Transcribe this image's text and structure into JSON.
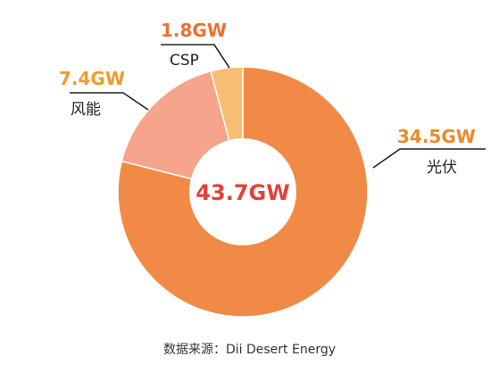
{
  "chart_data": {
    "type": "pie",
    "donut": true,
    "total_label": "43.7GW",
    "slices": [
      {
        "name": "光伏",
        "value": 34.5,
        "label": "34.5GW",
        "color": "#f28a47",
        "label_color": "#ee8a2b"
      },
      {
        "name": "风能",
        "value": 7.4,
        "label": "7.4GW",
        "color": "#f6a48b",
        "label_color": "#f29a2e"
      },
      {
        "name": "CSP",
        "value": 1.8,
        "label": "1.8GW",
        "color": "#f7bd70",
        "label_color": "#ef6f30"
      }
    ],
    "source": "数据来源：Dii Desert Energy"
  },
  "colors": {
    "total_text": "#e0433a",
    "leader_line": "#222222",
    "background": "#ffffff"
  }
}
